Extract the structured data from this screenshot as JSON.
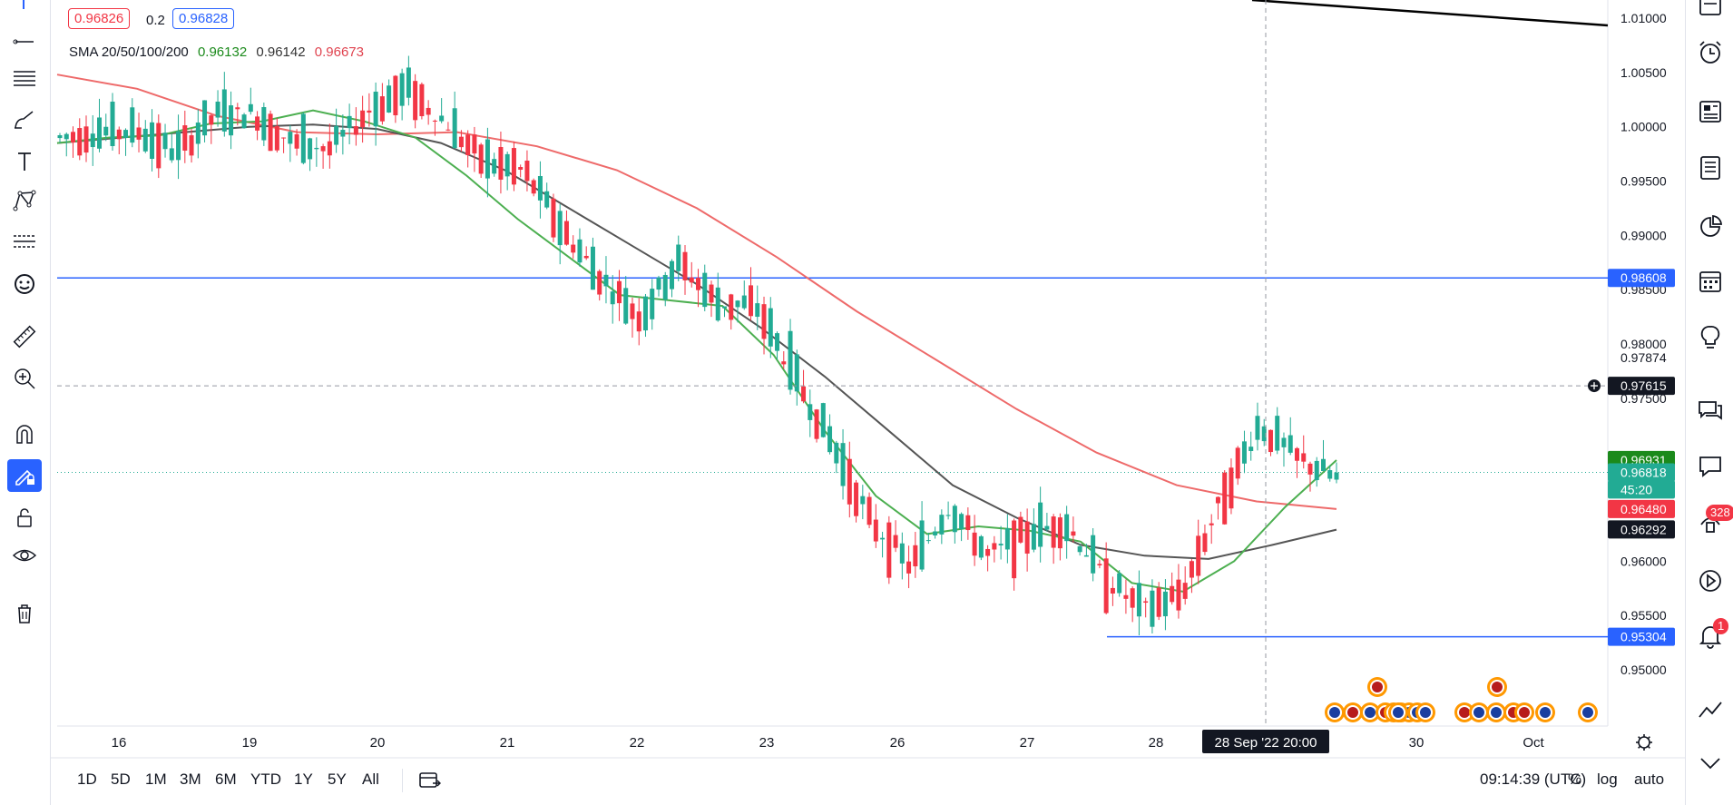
{
  "legend": {
    "bid": "0.96826",
    "spread": "0.2",
    "ask": "0.96828",
    "sma_label": "SMA 20/50/100/200",
    "sma_values": [
      "0.96132",
      "0.96142",
      "0.96673"
    ],
    "sma_colors": [
      "#1b8a1b",
      "#333333",
      "#e0434f"
    ]
  },
  "price_axis": {
    "ticks": [
      "1.01000",
      "1.00500",
      "1.00000",
      "0.99500",
      "0.99000",
      "0.98500",
      "0.98000",
      "0.97874",
      "0.97500",
      "0.96000",
      "0.95500",
      "0.95000"
    ],
    "labels": [
      {
        "text": "0.98608",
        "price": 0.98608,
        "color": "#2962ff"
      },
      {
        "text": "0.97615",
        "price": 0.97615,
        "color": "#131722"
      },
      {
        "text": "0.96931",
        "price": 0.96931,
        "color": "#1b8a1b"
      },
      {
        "text": "0.96818",
        "price": 0.96818,
        "color": "#22ab94"
      },
      {
        "text": "45:20",
        "price": 0.9666,
        "color": "#22ab94"
      },
      {
        "text": "0.96480",
        "price": 0.9648,
        "color": "#f23645"
      },
      {
        "text": "0.96292",
        "price": 0.96292,
        "color": "#131722"
      },
      {
        "text": "0.95304",
        "price": 0.95304,
        "color": "#2962ff"
      }
    ]
  },
  "time_axis": {
    "ticks": [
      "16",
      "19",
      "20",
      "21",
      "22",
      "23",
      "26",
      "27",
      "28",
      "30",
      "Oct"
    ],
    "crosshair_label": "28 Sep '22   20:00"
  },
  "timeframes": [
    "1D",
    "5D",
    "1M",
    "3M",
    "6M",
    "YTD",
    "1Y",
    "5Y",
    "All"
  ],
  "clock": "09:14:39 (UTC)",
  "scale_options": [
    "%",
    "log",
    "auto"
  ],
  "badges": {
    "ideas": "328",
    "alerts": "1"
  },
  "chart_data": {
    "type": "candlestick",
    "title": "",
    "ylim": [
      0.9455,
      1.0115
    ],
    "horizontal_lines": [
      {
        "price": 0.98608,
        "color": "#2962ff"
      },
      {
        "price": 0.95304,
        "color": "#2962ff"
      }
    ],
    "trendline": {
      "from": {
        "x": 28.75,
        "y": 1.0125
      },
      "to": {
        "x": 29.9,
        "y": 1.0098
      },
      "color": "#000000"
    },
    "crosshair": {
      "x": "28 Sep '22 20:00",
      "price": 0.97615
    },
    "current_price": 0.96818,
    "series": [
      {
        "name": "SMA 20",
        "color": "#4caf50"
      },
      {
        "name": "SMA 50",
        "color": "#555555"
      },
      {
        "name": "SMA 100",
        "color": "#ee6a6a"
      }
    ],
    "path_points": [
      [
        0.9995,
        0.9985
      ],
      [
        1.0,
        0.999
      ],
      [
        1.0,
        0.9992
      ],
      [
        0.9988,
        0.9965
      ],
      [
        1.003,
        0.999
      ],
      [
        1.002,
        1.0005
      ],
      [
        0.9995,
        0.9975
      ],
      [
        0.999,
        0.997
      ],
      [
        1.002,
        1.001
      ],
      [
        1.004,
        1.003
      ],
      [
        1.002,
        0.9985
      ],
      [
        0.997,
        0.9965
      ],
      [
        0.9965,
        0.9955
      ],
      [
        0.991,
        0.99
      ],
      [
        0.987,
        0.985
      ],
      [
        0.983,
        0.982
      ],
      [
        0.987,
        0.988
      ],
      [
        0.984,
        0.9835
      ],
      [
        0.984,
        0.983
      ],
      [
        0.978,
        0.976
      ],
      [
        0.972,
        0.969
      ],
      [
        0.965,
        0.962
      ],
      [
        0.957,
        0.962
      ],
      [
        0.966,
        0.964
      ],
      [
        0.961,
        0.96
      ],
      [
        0.962,
        0.963
      ],
      [
        0.964,
        0.963
      ],
      [
        0.959,
        0.958
      ],
      [
        0.957,
        0.954
      ],
      [
        0.956,
        0.958
      ],
      [
        0.963,
        0.968
      ],
      [
        0.973,
        0.972
      ],
      [
        0.97,
        0.969
      ],
      [
        0.967,
        0.9682
      ]
    ],
    "sma20": [
      0.9985,
      0.999,
      0.9992,
      1.0003,
      1.0005,
      1.0015,
      1.0005,
      0.999,
      0.9955,
      0.9915,
      0.988,
      0.9845,
      0.984,
      0.9835,
      0.979,
      0.972,
      0.966,
      0.9625,
      0.9632,
      0.9628,
      0.9618,
      0.958,
      0.9572,
      0.96,
      0.965,
      0.9693
    ],
    "sma50": [
      0.9985,
      0.999,
      0.9995,
      1.0,
      1.0002,
      0.9998,
      0.9985,
      0.996,
      0.9925,
      0.989,
      0.9855,
      0.9815,
      0.977,
      0.972,
      0.967,
      0.964,
      0.9615,
      0.9605,
      0.9602,
      0.9615,
      0.9629
    ],
    "sma100": [
      1.0048,
      1.0035,
      1.001,
      0.9995,
      0.9993,
      0.9995,
      0.9982,
      0.996,
      0.9925,
      0.988,
      0.983,
      0.9785,
      0.974,
      0.97,
      0.967,
      0.9655,
      0.9648
    ]
  }
}
